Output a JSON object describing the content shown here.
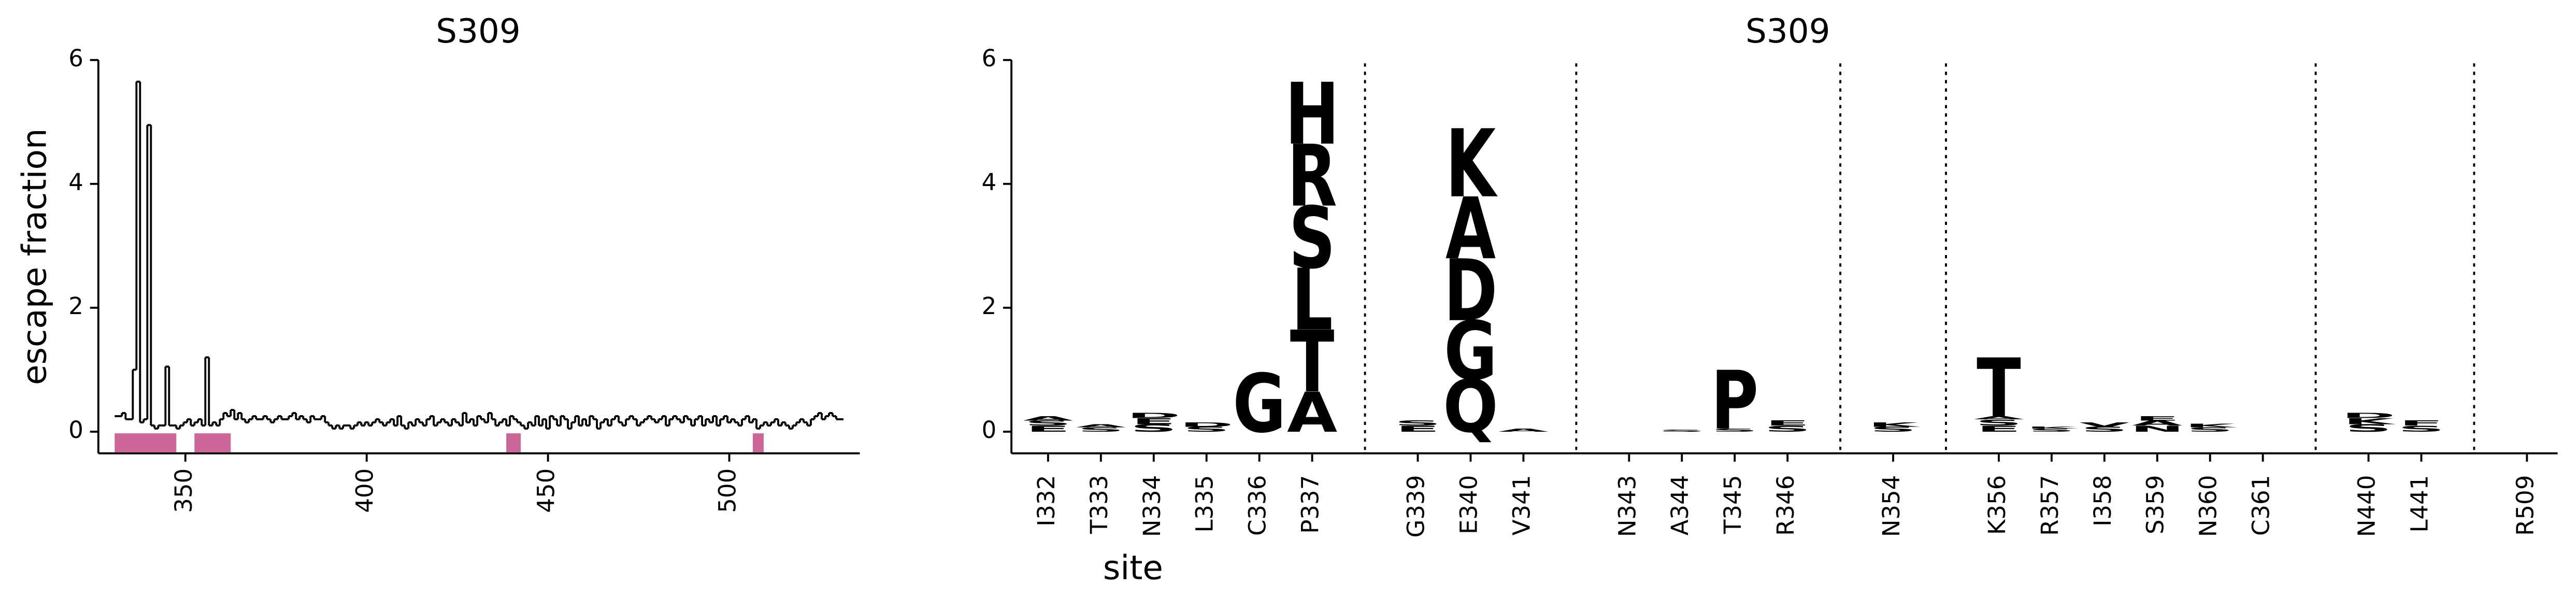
{
  "chart_data": [
    {
      "type": "step",
      "title": "S309",
      "ylabel": "escape fraction",
      "color": "#000000",
      "highlight_color": "#cc6699",
      "xlim": [
        326,
        536
      ],
      "xticks": [
        350,
        400,
        450,
        500
      ],
      "ylim": [
        -0.35,
        6
      ],
      "yticks": [
        0,
        2,
        4,
        6
      ],
      "highlight_ranges": [
        [
          331,
          347
        ],
        [
          353,
          362
        ],
        [
          439,
          442
        ],
        [
          507,
          509
        ]
      ],
      "x": [
        331,
        332,
        333,
        334,
        335,
        336,
        337,
        338,
        339,
        340,
        341,
        342,
        343,
        344,
        345,
        346,
        347,
        348,
        349,
        350,
        351,
        352,
        353,
        354,
        355,
        356,
        357,
        358,
        359,
        360,
        361,
        362,
        363,
        364,
        365,
        366,
        367,
        368,
        369,
        370,
        371,
        372,
        373,
        374,
        375,
        376,
        377,
        378,
        379,
        380,
        381,
        382,
        383,
        384,
        385,
        386,
        387,
        388,
        389,
        390,
        391,
        392,
        393,
        394,
        395,
        396,
        397,
        398,
        399,
        400,
        401,
        402,
        403,
        404,
        405,
        406,
        407,
        408,
        409,
        410,
        411,
        412,
        413,
        414,
        415,
        416,
        417,
        418,
        419,
        420,
        421,
        422,
        423,
        424,
        425,
        426,
        427,
        428,
        429,
        430,
        431,
        432,
        433,
        434,
        435,
        436,
        437,
        438,
        439,
        440,
        441,
        442,
        443,
        444,
        445,
        446,
        447,
        448,
        449,
        450,
        451,
        452,
        453,
        454,
        455,
        456,
        457,
        458,
        459,
        460,
        461,
        462,
        463,
        464,
        465,
        466,
        467,
        468,
        469,
        470,
        471,
        472,
        473,
        474,
        475,
        476,
        477,
        478,
        479,
        480,
        481,
        482,
        483,
        484,
        485,
        486,
        487,
        488,
        489,
        490,
        491,
        492,
        493,
        494,
        495,
        496,
        497,
        498,
        499,
        500,
        501,
        502,
        503,
        504,
        505,
        506,
        507,
        508,
        509,
        510,
        511,
        512,
        513,
        514,
        515,
        516,
        517,
        518,
        519,
        520,
        521,
        522,
        523,
        524,
        525,
        526,
        527,
        528,
        529,
        530,
        531
      ],
      "values": [
        0.25,
        0.25,
        0.3,
        0.2,
        0.2,
        1.0,
        5.65,
        0.15,
        0.2,
        4.95,
        0.1,
        0.05,
        0.1,
        0.1,
        1.05,
        0.1,
        0.1,
        0.05,
        0.1,
        0.15,
        0.2,
        0.1,
        0.15,
        0.2,
        0.1,
        1.2,
        0.1,
        0.15,
        0.1,
        0.2,
        0.3,
        0.25,
        0.35,
        0.2,
        0.3,
        0.2,
        0.15,
        0.2,
        0.25,
        0.2,
        0.2,
        0.25,
        0.2,
        0.15,
        0.2,
        0.25,
        0.2,
        0.2,
        0.25,
        0.3,
        0.2,
        0.25,
        0.2,
        0.15,
        0.25,
        0.2,
        0.2,
        0.25,
        0.15,
        0.1,
        0.05,
        0.1,
        0.05,
        0.1,
        0.1,
        0.05,
        0.1,
        0.15,
        0.1,
        0.15,
        0.1,
        0.15,
        0.2,
        0.15,
        0.1,
        0.15,
        0.2,
        0.1,
        0.25,
        0.1,
        0.05,
        0.15,
        0.1,
        0.2,
        0.15,
        0.1,
        0.2,
        0.25,
        0.1,
        0.15,
        0.2,
        0.15,
        0.1,
        0.2,
        0.15,
        0.1,
        0.3,
        0.15,
        0.2,
        0.1,
        0.25,
        0.2,
        0.15,
        0.3,
        0.2,
        0.1,
        0.15,
        0.2,
        0.1,
        0.25,
        0.2,
        0.15,
        0.1,
        0.05,
        0.15,
        0.1,
        0.25,
        0.1,
        0.2,
        0.05,
        0.25,
        0.2,
        0.1,
        0.25,
        0.2,
        0.05,
        0.15,
        0.25,
        0.1,
        0.2,
        0.1,
        0.25,
        0.2,
        0.05,
        0.15,
        0.2,
        0.1,
        0.2,
        0.25,
        0.15,
        0.1,
        0.2,
        0.25,
        0.2,
        0.1,
        0.15,
        0.2,
        0.25,
        0.2,
        0.15,
        0.2,
        0.25,
        0.1,
        0.2,
        0.25,
        0.2,
        0.15,
        0.25,
        0.2,
        0.1,
        0.2,
        0.25,
        0.1,
        0.2,
        0.15,
        0.25,
        0.1,
        0.2,
        0.25,
        0.15,
        0.2,
        0.15,
        0.1,
        0.2,
        0.25,
        0.15,
        0.2,
        0.05,
        0.1,
        0.15,
        0.1,
        0.15,
        0.2,
        0.1,
        0.15,
        0.1,
        0.05,
        0.1,
        0.15,
        0.2,
        0.15,
        0.1,
        0.2,
        0.25,
        0.3,
        0.2,
        0.25,
        0.3,
        0.25,
        0.2,
        0.2
      ]
    },
    {
      "type": "logo",
      "title": "S309",
      "xlabel": "site",
      "color": "#000000",
      "ylim": [
        -0.35,
        6
      ],
      "yticks": [
        0,
        2,
        4,
        6
      ],
      "groups": [
        [
          {
            "site": "I332",
            "letters": [
              {
                "letter": "E",
                "value": 0.1
              },
              {
                "letter": "S",
                "value": 0.08
              },
              {
                "letter": "A",
                "value": 0.07
              }
            ]
          },
          {
            "site": "T333",
            "letters": [
              {
                "letter": "S",
                "value": 0.07
              },
              {
                "letter": "A",
                "value": 0.05
              }
            ]
          },
          {
            "site": "N334",
            "letters": [
              {
                "letter": "S",
                "value": 0.12
              },
              {
                "letter": "E",
                "value": 0.1
              },
              {
                "letter": "D",
                "value": 0.08
              }
            ]
          },
          {
            "site": "L335",
            "letters": [
              {
                "letter": "S",
                "value": 0.08
              },
              {
                "letter": "D",
                "value": 0.07
              }
            ]
          },
          {
            "site": "C336",
            "letters": [
              {
                "letter": "G",
                "value": 0.95
              }
            ]
          },
          {
            "site": "P337",
            "letters": [
              {
                "letter": "A",
                "value": 0.65
              },
              {
                "letter": "T",
                "value": 1.0
              },
              {
                "letter": "L",
                "value": 1.0
              },
              {
                "letter": "S",
                "value": 1.0
              },
              {
                "letter": "R",
                "value": 1.0
              },
              {
                "letter": "H",
                "value": 1.0
              }
            ]
          }
        ],
        [
          {
            "site": "G339",
            "letters": [
              {
                "letter": "E",
                "value": 0.1
              },
              {
                "letter": "S",
                "value": 0.08
              }
            ]
          },
          {
            "site": "E340",
            "letters": [
              {
                "letter": "Q",
                "value": 0.85
              },
              {
                "letter": "G",
                "value": 0.95
              },
              {
                "letter": "D",
                "value": 1.0
              },
              {
                "letter": "A",
                "value": 1.0
              },
              {
                "letter": "K",
                "value": 1.1
              }
            ]
          },
          {
            "site": "V341",
            "letters": [
              {
                "letter": "A",
                "value": 0.05
              }
            ]
          }
        ],
        [
          {
            "site": "N343",
            "letters": []
          },
          {
            "site": "A344",
            "letters": [
              {
                "letter": "S",
                "value": 0.03
              }
            ]
          },
          {
            "site": "T345",
            "letters": [
              {
                "letter": "S",
                "value": 0.05
              },
              {
                "letter": "P",
                "value": 0.95
              }
            ]
          },
          {
            "site": "R346",
            "letters": [
              {
                "letter": "S",
                "value": 0.1
              },
              {
                "letter": "E",
                "value": 0.08
              }
            ]
          }
        ],
        [
          {
            "site": "N354",
            "letters": [
              {
                "letter": "S",
                "value": 0.08
              },
              {
                "letter": "K",
                "value": 0.07
              }
            ]
          }
        ],
        [
          {
            "site": "K356",
            "letters": [
              {
                "letter": "E",
                "value": 0.1
              },
              {
                "letter": "S",
                "value": 0.1
              },
              {
                "letter": "A",
                "value": 0.05
              },
              {
                "letter": "T",
                "value": 0.95
              }
            ]
          },
          {
            "site": "R357",
            "letters": [
              {
                "letter": "S",
                "value": 0.05
              },
              {
                "letter": "K",
                "value": 0.03
              }
            ]
          },
          {
            "site": "I358",
            "letters": [
              {
                "letter": "S",
                "value": 0.08
              },
              {
                "letter": "V",
                "value": 0.07
              }
            ]
          },
          {
            "site": "S359",
            "letters": [
              {
                "letter": "N",
                "value": 0.1
              },
              {
                "letter": "A",
                "value": 0.08
              },
              {
                "letter": "E",
                "value": 0.07
              }
            ]
          },
          {
            "site": "N360",
            "letters": [
              {
                "letter": "S",
                "value": 0.07
              },
              {
                "letter": "K",
                "value": 0.06
              }
            ]
          },
          {
            "site": "C361",
            "letters": []
          }
        ],
        [
          {
            "site": "N440",
            "letters": [
              {
                "letter": "S",
                "value": 0.12
              },
              {
                "letter": "K",
                "value": 0.1
              },
              {
                "letter": "D",
                "value": 0.08
              }
            ]
          },
          {
            "site": "L441",
            "letters": [
              {
                "letter": "S",
                "value": 0.1
              },
              {
                "letter": "F",
                "value": 0.08
              }
            ]
          }
        ],
        [
          {
            "site": "R509",
            "letters": []
          }
        ]
      ]
    }
  ]
}
